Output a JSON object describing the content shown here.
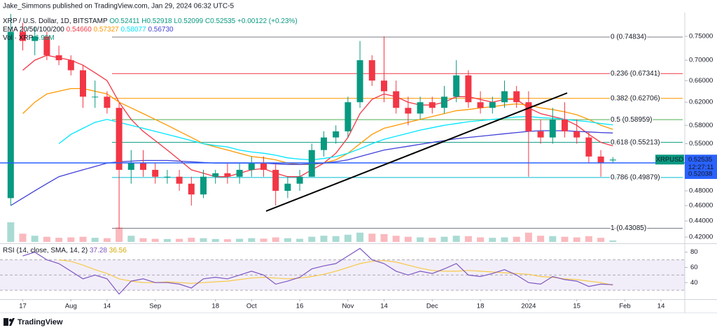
{
  "chart_data": {
    "type": "candlestick",
    "header": "Jake_Simmons published on TradingView.com, Jan 29, 2024 06:32 UTC-5",
    "title": "XRP / U.S. Dollar, 1D, BITSTAMP",
    "ohlc_label": "O0.52411 H0.52918 L0.52099 C0.52535 +0.00122 (+0.23%)",
    "ema": {
      "label": "EMA 20/50/100/200",
      "lines": [
        {
          "color": "#f23645",
          "value_label": "0.54660",
          "values": [
            null,
            0.68,
            0.7,
            0.71,
            0.705,
            0.7,
            0.69,
            0.675,
            0.66,
            0.62,
            0.59,
            0.57,
            0.555,
            0.54,
            0.525,
            0.51,
            0.505,
            0.5,
            0.5,
            0.505,
            0.51,
            0.512,
            0.505,
            0.5,
            0.5,
            0.51,
            0.52,
            0.535,
            0.56,
            0.6,
            0.625,
            0.635,
            0.63,
            0.62,
            0.615,
            0.615,
            0.62,
            0.63,
            0.63,
            0.625,
            0.62,
            0.625,
            0.625,
            0.61,
            0.6,
            0.595,
            0.59,
            0.58,
            0.565,
            0.552,
            0.5466,
            null,
            null,
            null,
            null,
            null,
            null
          ]
        },
        {
          "color": "#ff9800",
          "value_label": "0.57327",
          "values": [
            null,
            0.6,
            0.62,
            0.635,
            0.64,
            0.645,
            0.645,
            0.64,
            0.635,
            0.62,
            0.61,
            0.6,
            0.59,
            0.58,
            0.57,
            0.56,
            0.55,
            0.545,
            0.54,
            0.535,
            0.53,
            0.528,
            0.525,
            0.52,
            0.518,
            0.518,
            0.52,
            0.525,
            0.535,
            0.55,
            0.565,
            0.575,
            0.58,
            0.585,
            0.59,
            0.595,
            0.6,
            0.605,
            0.607,
            0.61,
            0.612,
            0.615,
            0.617,
            0.615,
            0.61,
            0.607,
            0.603,
            0.598,
            0.59,
            0.58,
            0.57327,
            null,
            null,
            null,
            null,
            null,
            null
          ]
        },
        {
          "color": "#00e5ff",
          "value_label": "0.58077",
          "values": [
            null,
            null,
            null,
            null,
            0.55,
            0.565,
            0.575,
            0.585,
            0.59,
            0.585,
            0.58,
            0.575,
            0.57,
            0.565,
            0.56,
            0.555,
            0.55,
            0.547,
            0.545,
            0.54,
            0.537,
            0.535,
            0.532,
            0.528,
            0.526,
            0.525,
            0.527,
            0.53,
            0.535,
            0.542,
            0.55,
            0.557,
            0.562,
            0.567,
            0.572,
            0.576,
            0.58,
            0.583,
            0.586,
            0.588,
            0.59,
            0.592,
            0.594,
            0.595,
            0.593,
            0.592,
            0.59,
            0.588,
            0.586,
            0.583,
            0.58077,
            null,
            null,
            null,
            null,
            null,
            null
          ]
        },
        {
          "color": "#3f3fd8",
          "value_label": "0.56730",
          "values": [
            0.46,
            0.47,
            0.48,
            0.49,
            0.5,
            0.505,
            0.51,
            0.515,
            0.52,
            0.522,
            0.523,
            0.524,
            0.524,
            0.524,
            0.523,
            0.522,
            0.521,
            0.52,
            0.52,
            0.52,
            0.52,
            0.52,
            0.519,
            0.518,
            0.518,
            0.519,
            0.52,
            0.522,
            0.525,
            0.53,
            0.535,
            0.54,
            0.543,
            0.546,
            0.549,
            0.552,
            0.555,
            0.558,
            0.56,
            0.562,
            0.564,
            0.566,
            0.568,
            0.57,
            0.571,
            0.571,
            0.571,
            0.57,
            0.569,
            0.568,
            0.5673,
            null,
            null,
            null,
            null,
            null,
            null
          ]
        }
      ]
    },
    "volume_label": "Vol · XRP",
    "volume_value_label": "6.95M",
    "categories": [
      null,
      "17",
      null,
      null,
      null,
      "Aug",
      null,
      null,
      "14",
      null,
      null,
      null,
      "Sep",
      null,
      null,
      null,
      null,
      "18",
      null,
      null,
      "Oct",
      null,
      null,
      null,
      "16",
      null,
      null,
      null,
      "Nov",
      null,
      null,
      "14",
      null,
      null,
      null,
      "Dec",
      null,
      null,
      null,
      "18",
      null,
      null,
      null,
      "2024",
      null,
      null,
      null,
      "15",
      null,
      null,
      null,
      "Feb",
      null,
      null,
      "14",
      null,
      null
    ],
    "open": [
      0.47,
      0.76,
      0.74,
      0.75,
      0.71,
      0.7,
      0.68,
      0.63,
      0.63,
      0.61,
      0.51,
      0.52,
      0.51,
      0.5,
      0.5,
      0.49,
      0.475,
      0.5,
      0.505,
      0.5,
      0.51,
      0.52,
      0.51,
      0.48,
      0.49,
      0.5,
      0.54,
      0.56,
      0.57,
      0.62,
      0.7,
      0.66,
      0.64,
      0.61,
      0.6,
      0.62,
      0.61,
      0.63,
      0.67,
      0.62,
      0.61,
      0.62,
      0.64,
      0.62,
      0.57,
      0.56,
      0.59,
      0.57,
      0.56,
      0.53,
      0.52411,
      null,
      null,
      null,
      null,
      null,
      null
    ],
    "high": [
      0.8,
      0.78,
      0.77,
      0.76,
      0.73,
      0.71,
      0.69,
      0.66,
      0.64,
      0.62,
      0.54,
      0.54,
      0.52,
      0.51,
      0.51,
      0.5,
      0.51,
      0.51,
      0.52,
      0.52,
      0.53,
      0.53,
      0.52,
      0.5,
      0.51,
      0.55,
      0.57,
      0.58,
      0.63,
      0.74,
      0.71,
      0.75,
      0.66,
      0.63,
      0.63,
      0.63,
      0.65,
      0.7,
      0.68,
      0.64,
      0.63,
      0.66,
      0.65,
      0.64,
      0.59,
      0.61,
      0.62,
      0.59,
      0.57,
      0.54,
      0.52918,
      null,
      null,
      null,
      null,
      null,
      null
    ],
    "low": [
      0.46,
      0.72,
      0.71,
      0.7,
      0.69,
      0.67,
      0.61,
      0.61,
      0.6,
      0.43,
      0.49,
      0.5,
      0.49,
      0.49,
      0.48,
      0.46,
      0.47,
      0.49,
      0.49,
      0.49,
      0.5,
      0.5,
      0.46,
      0.47,
      0.48,
      0.5,
      0.53,
      0.55,
      0.56,
      0.61,
      0.65,
      0.62,
      0.6,
      0.58,
      0.59,
      0.6,
      0.6,
      0.62,
      0.61,
      0.6,
      0.6,
      0.61,
      0.61,
      0.5,
      0.55,
      0.55,
      0.56,
      0.55,
      0.52,
      0.5,
      0.52099,
      null,
      null,
      null,
      null,
      null,
      null
    ],
    "close": [
      0.76,
      0.74,
      0.75,
      0.71,
      0.7,
      0.68,
      0.63,
      0.63,
      0.61,
      0.51,
      0.52,
      0.51,
      0.5,
      0.5,
      0.49,
      0.475,
      0.5,
      0.505,
      0.5,
      0.51,
      0.52,
      0.51,
      0.48,
      0.49,
      0.5,
      0.54,
      0.56,
      0.57,
      0.62,
      0.7,
      0.66,
      0.64,
      0.61,
      0.6,
      0.62,
      0.61,
      0.63,
      0.67,
      0.62,
      0.61,
      0.62,
      0.64,
      0.62,
      0.57,
      0.56,
      0.59,
      0.57,
      0.56,
      0.53,
      0.52,
      0.52535,
      null,
      null,
      null,
      null,
      null,
      null
    ],
    "volume": [
      95,
      40,
      30,
      25,
      20,
      22,
      25,
      20,
      18,
      70,
      30,
      18,
      15,
      14,
      15,
      20,
      18,
      14,
      13,
      15,
      18,
      16,
      22,
      18,
      15,
      25,
      30,
      28,
      35,
      45,
      40,
      38,
      30,
      25,
      22,
      20,
      25,
      30,
      28,
      22,
      20,
      22,
      25,
      45,
      30,
      28,
      25,
      22,
      28,
      20,
      6.95,
      null,
      null,
      null,
      null,
      null,
      null
    ],
    "up_color": "#089981",
    "down_color": "#f23645",
    "log_scale": true,
    "ylim": [
      0.415,
      0.8
    ],
    "yticks": [
      {
        "value": 0.75,
        "label": "0.75000"
      },
      {
        "value": 0.7,
        "label": "0.70000"
      },
      {
        "value": 0.66,
        "label": "0.66000"
      },
      {
        "value": 0.62,
        "label": "0.62000"
      },
      {
        "value": 0.58,
        "label": "0.58000"
      },
      {
        "value": 0.55,
        "label": "0.55000"
      },
      {
        "value": 0.48,
        "label": "0.48000"
      },
      {
        "value": 0.46,
        "label": "0.46000"
      },
      {
        "value": 0.44,
        "label": "0.44000"
      },
      {
        "value": 0.42,
        "label": "0.42000"
      }
    ],
    "fib_levels": [
      {
        "label": "0 (0.74834)",
        "price": 0.74834,
        "color": "#787b86"
      },
      {
        "label": "0.236 (0.67341)",
        "price": 0.67341,
        "color": "#f23645"
      },
      {
        "label": "0.382 (0.62706)",
        "price": 0.62706,
        "color": "#ff9800"
      },
      {
        "label": "0.5 (0.58959)",
        "price": 0.58959,
        "color": "#4caf50"
      },
      {
        "label": "0.618 (0.55213)",
        "price": 0.55213,
        "color": "#089981"
      },
      {
        "label": "0.786 (0.49879)",
        "price": 0.49879,
        "color": "#00bcd4"
      },
      {
        "label": "1 (0.43085)",
        "price": 0.43085,
        "color": "#787b86"
      }
    ],
    "last_price": {
      "symbol": "XRPUSD",
      "value": 0.52535,
      "countdown": "12:27:11"
    },
    "hline": {
      "value": 0.52038,
      "color": "#2962ff"
    },
    "rsi": {
      "label": "RSI (14, close, SMA, 14, 2)",
      "value_label": "37.28",
      "sma_value_label": "36.56",
      "color": "#7e57c2",
      "sma_color": "#f7c948",
      "ylim": [
        20,
        88
      ],
      "yticks": [
        80,
        60,
        40
      ],
      "band": [
        30,
        70
      ],
      "midline": 50,
      "values": [
        null,
        75,
        80,
        70,
        65,
        55,
        45,
        50,
        45,
        25,
        42,
        45,
        40,
        40,
        38,
        33,
        45,
        47,
        45,
        50,
        55,
        50,
        38,
        42,
        47,
        58,
        62,
        65,
        75,
        85,
        70,
        65,
        55,
        50,
        55,
        52,
        58,
        65,
        50,
        48,
        52,
        57,
        50,
        40,
        38,
        48,
        44,
        42,
        35,
        38,
        37.28,
        null,
        null,
        null,
        null,
        null,
        null
      ],
      "sma": [
        null,
        null,
        null,
        null,
        70,
        68,
        63,
        57,
        52,
        45,
        42,
        40,
        40,
        41,
        40,
        39,
        40,
        41,
        42,
        44,
        46,
        47,
        46,
        45,
        46,
        48,
        51,
        55,
        60,
        65,
        68,
        69,
        67,
        63,
        59,
        56,
        55,
        55,
        56,
        55,
        54,
        53,
        52,
        51,
        48,
        47,
        45,
        44,
        42,
        40,
        36.56,
        null,
        null,
        null,
        null,
        null,
        null
      ]
    },
    "footer": "TradingView"
  }
}
